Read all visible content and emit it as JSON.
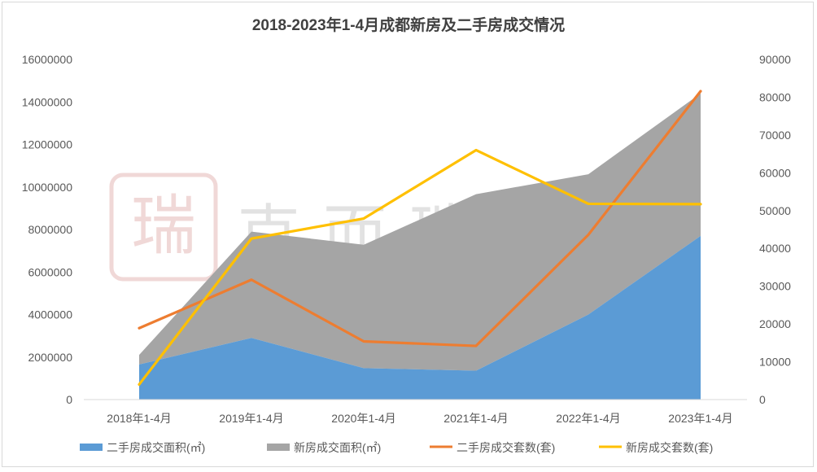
{
  "chart_data": {
    "type": "area",
    "title": "2018-2023年1-4月成都新房及二手房成交情况",
    "categories": [
      "2018年1-4月",
      "2019年1-4月",
      "2020年1-4月",
      "2021年1-4月",
      "2022年1-4月",
      "2023年1-4月"
    ],
    "y_left": {
      "ylim": [
        0,
        16000000
      ],
      "ticks": [
        "0",
        "2000000",
        "4000000",
        "6000000",
        "8000000",
        "10000000",
        "12000000",
        "14000000",
        "16000000"
      ]
    },
    "y_right": {
      "ylim": [
        0,
        90000
      ],
      "ticks": [
        "0",
        "10000",
        "20000",
        "30000",
        "40000",
        "50000",
        "60000",
        "70000",
        "80000",
        "90000"
      ]
    },
    "series": [
      {
        "name": "二手房成交面积(㎡)",
        "type": "area",
        "axis": "left",
        "color": "#5b9bd5",
        "values": [
          1650000,
          2900000,
          1480000,
          1360000,
          4000000,
          7700000
        ]
      },
      {
        "name": "新房成交面积(㎡)",
        "type": "area",
        "axis": "left",
        "stacked_on": 0,
        "color": "#a5a5a5",
        "values": [
          450000,
          5000000,
          5800000,
          8300000,
          6600000,
          6700000
        ]
      },
      {
        "name": "二手房成交套数(套)",
        "type": "line",
        "axis": "right",
        "color": "#ed7d31",
        "values": [
          18900,
          31700,
          15400,
          14200,
          43600,
          81600
        ]
      },
      {
        "name": "新房成交套数(套)",
        "type": "line",
        "axis": "right",
        "color": "#ffc000",
        "values": [
          4000,
          42600,
          47900,
          66000,
          51800,
          51700
        ]
      }
    ],
    "grid": false,
    "legend": "bottom"
  },
  "watermark": {
    "text": "克而瑞·四川"
  }
}
